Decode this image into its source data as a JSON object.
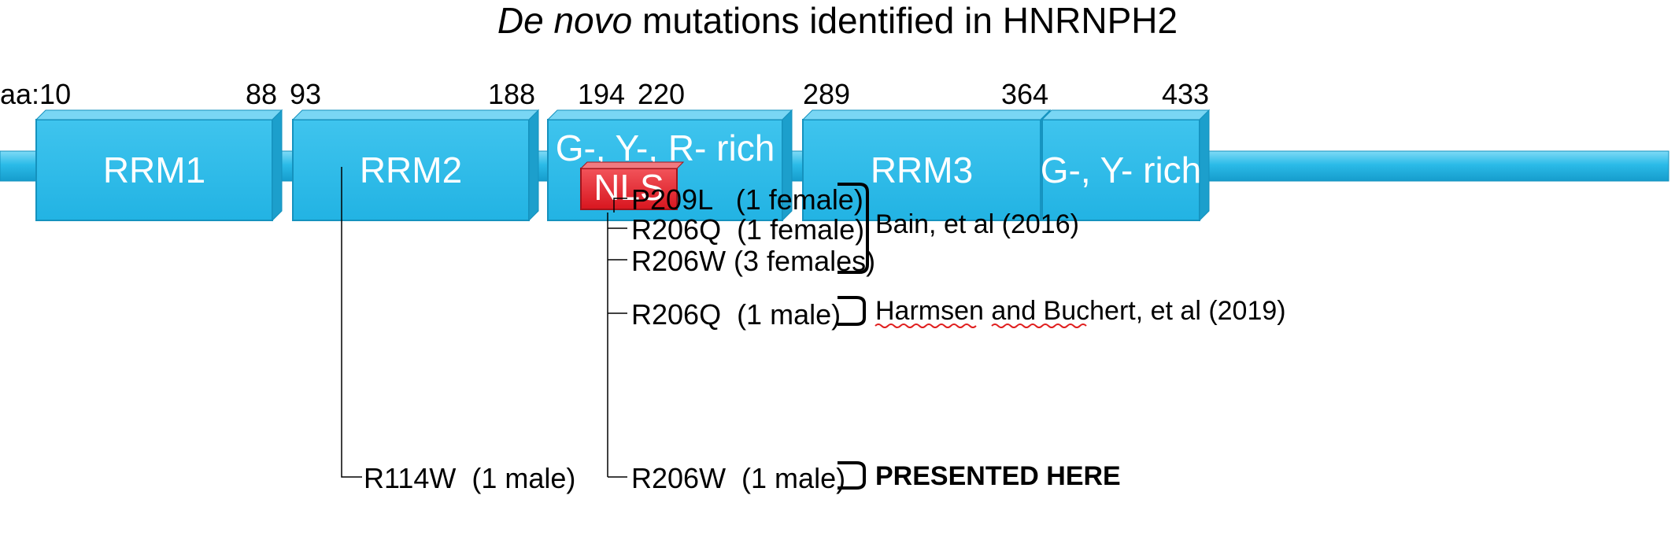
{
  "title": {
    "italic": "De novo",
    "rest": " mutations identified in HNRNPH2"
  },
  "colors": {
    "domain_fill": "#2bbbe8",
    "domain_edge": "#1592be",
    "nls_fill": "#e5222b",
    "nls_edge": "#a3141b"
  },
  "positions": {
    "start_prefix": "aa:",
    "start": "10",
    "rrm1_end": "88",
    "rrm2_start": "93",
    "rrm2_end": "188",
    "gyr_start": "194",
    "nls_end": "220",
    "rrm3_start": "289",
    "rrm3_end": "364",
    "end": "433"
  },
  "domains": {
    "rrm1": "RRM1",
    "rrm2": "RRM2",
    "gyr_rich": "G-, Y-, R- rich",
    "rrm3": "RRM3",
    "gy_rich": "G-, Y- rich",
    "nls": "NLS"
  },
  "mutations": {
    "m1": "P209L   (1 female)",
    "m2": "R206Q  (1 female)",
    "m3": "R206W (3 females)",
    "m4": "R206Q  (1 male)",
    "m5": "R206W  (1 male)",
    "m6": "R114W  (1 male)"
  },
  "references": {
    "bain": "Bain, et al (2016)",
    "harmsen": "Harmsen and Buchert, et al (2019)",
    "presented": "PRESENTED HERE"
  }
}
